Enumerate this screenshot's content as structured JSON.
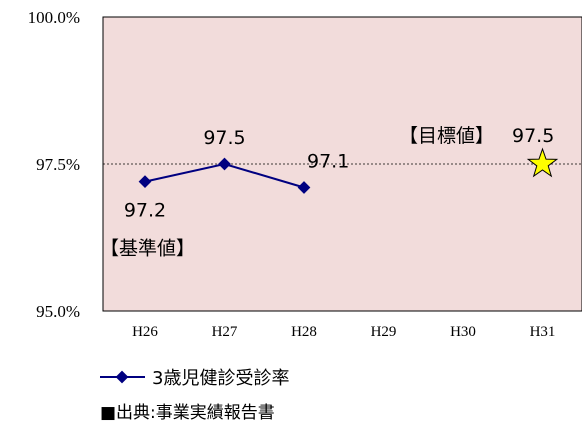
{
  "chart_data": {
    "type": "line",
    "categories": [
      "H26",
      "H27",
      "H28",
      "H29",
      "H30",
      "H31"
    ],
    "series": [
      {
        "name": "3歳児健診受診率",
        "values": [
          97.2,
          97.5,
          97.1,
          null,
          null,
          null
        ],
        "color": "#000080"
      }
    ],
    "ylim": [
      95.0,
      100.0
    ],
    "yticks": [
      "100.0%",
      "97.5%",
      "95.0%"
    ],
    "reference_line": 97.5,
    "plot_background": "#f2dcdb",
    "data_labels": [
      "97.2",
      "97.5",
      "97.1"
    ],
    "baseline_label": "【基準値】",
    "target": {
      "category": "H31",
      "value": 97.5,
      "label": "【目標値】",
      "value_label": "97.5",
      "marker": "star-icon",
      "color": "#ffff00"
    },
    "legend_placement": "bottom-left"
  },
  "source_note": "■出典:事業実績報告書"
}
